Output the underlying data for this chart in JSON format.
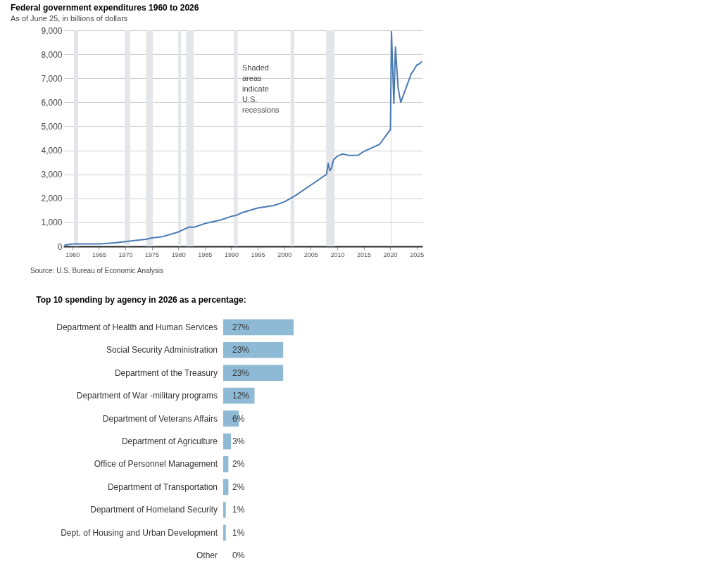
{
  "chart_data": [
    {
      "type": "line",
      "title": "Federal government expenditures  1960 to 2026",
      "subtitle": "As of June 25, in billions of dollars",
      "x": [
        1958.5,
        1960,
        1962,
        1965,
        1968,
        1970,
        1972,
        1974,
        1975,
        1977,
        1980,
        1982,
        1983,
        1985,
        1988,
        1990,
        1991,
        1992,
        1995,
        1998,
        2000,
        2002,
        2005,
        2007,
        2008.0,
        2008.3,
        2008.6,
        2008.9,
        2009.3,
        2010,
        2011,
        2012,
        2013,
        2014,
        2015,
        2016,
        2017,
        2018,
        2019,
        2019.75,
        2020.05,
        2020.25,
        2020.7,
        2021.0,
        2021.5,
        2022.0,
        2022.5,
        2023,
        2023.5,
        2024,
        2024.5,
        2025,
        2025.5,
        2026
      ],
      "series": [
        {
          "color": "#4a7ab5",
          "values": [
            50,
            100,
            100,
            100,
            150,
            200,
            250,
            300,
            350,
            400,
            600,
            800,
            800,
            950,
            1100,
            1250,
            1300,
            1400,
            1600,
            1700,
            1850,
            2100,
            2550,
            2850,
            3000,
            3450,
            3150,
            3250,
            3600,
            3750,
            3850,
            3800,
            3790,
            3800,
            3950,
            4050,
            4150,
            4250,
            4550,
            4780,
            4850,
            8950,
            5950,
            8300,
            6600,
            6000,
            6300,
            6600,
            6900,
            7200,
            7350,
            7550,
            7600,
            7700
          ]
        }
      ],
      "xlim": [
        1958.3,
        2026.1
      ],
      "ylim": [
        0,
        9000
      ],
      "xticks": [
        1960,
        1965,
        1970,
        1975,
        1980,
        1985,
        1990,
        1995,
        2000,
        2005,
        2010,
        2015,
        2020,
        2025
      ],
      "yticks": [
        0,
        {
          "value": 1000,
          "label": "1,000"
        },
        {
          "value": 2000,
          "label": "2,000"
        },
        {
          "value": 3000,
          "label": "3,000"
        },
        {
          "value": 4000,
          "label": "4,000"
        },
        {
          "value": 5000,
          "label": "5,000"
        },
        {
          "value": 6000,
          "label": "6,000"
        },
        {
          "value": 7000,
          "label": "7,000"
        },
        {
          "value": 8000,
          "label": "8,000"
        },
        {
          "value": 9000,
          "label": "9,000"
        }
      ],
      "grid": "y",
      "bands": [
        {
          "axis": "x",
          "from": 1960.3,
          "to": 1961.1,
          "color": "#e3e5e8"
        },
        {
          "axis": "x",
          "from": 1969.9,
          "to": 1970.9,
          "color": "#e3e5e8"
        },
        {
          "axis": "x",
          "from": 1973.9,
          "to": 1975.2,
          "color": "#e3e5e8"
        },
        {
          "axis": "x",
          "from": 1980.0,
          "to": 1980.5,
          "color": "#e3e5e8"
        },
        {
          "axis": "x",
          "from": 1981.5,
          "to": 1982.9,
          "color": "#e3e5e8"
        },
        {
          "axis": "x",
          "from": 1990.5,
          "to": 1991.2,
          "color": "#e3e5e8"
        },
        {
          "axis": "x",
          "from": 2001.2,
          "to": 2001.9,
          "color": "#e3e5e8"
        },
        {
          "axis": "x",
          "from": 2007.9,
          "to": 2009.5,
          "color": "#e3e5e8"
        },
        {
          "axis": "x",
          "from": 2020.1,
          "to": 2020.3,
          "color": "#e3e5e8"
        }
      ],
      "annotations": [
        "Shaded\nareas\nindicate\nU.S.\nrecessions",
        "Source: U.S. Bureau of Economic Analysis"
      ]
    },
    {
      "type": "bar",
      "orientation": "horizontal",
      "title": "Top 10 spending by agency in 2026 as a percentage:",
      "categories": [
        "Department of Health and Human Services",
        "Social Security Administration",
        "Department of the Treasury",
        "Department of War -military programs",
        "Department of Veterans Affairs",
        "Department of Agriculture",
        "Office of Personnel Management",
        "Department of Transportation",
        "Department of Homeland Security",
        "Dept. of Housing and Urban Development",
        "Other"
      ],
      "values": [
        27,
        23,
        23,
        12,
        6,
        3,
        2,
        2,
        1,
        1,
        0
      ],
      "value_labels": [
        "27%",
        "23%",
        "23%",
        "12%",
        "6%",
        "3%",
        "2%",
        "2%",
        "1%",
        "1%",
        "0%"
      ],
      "color": "#8fbad6"
    }
  ]
}
